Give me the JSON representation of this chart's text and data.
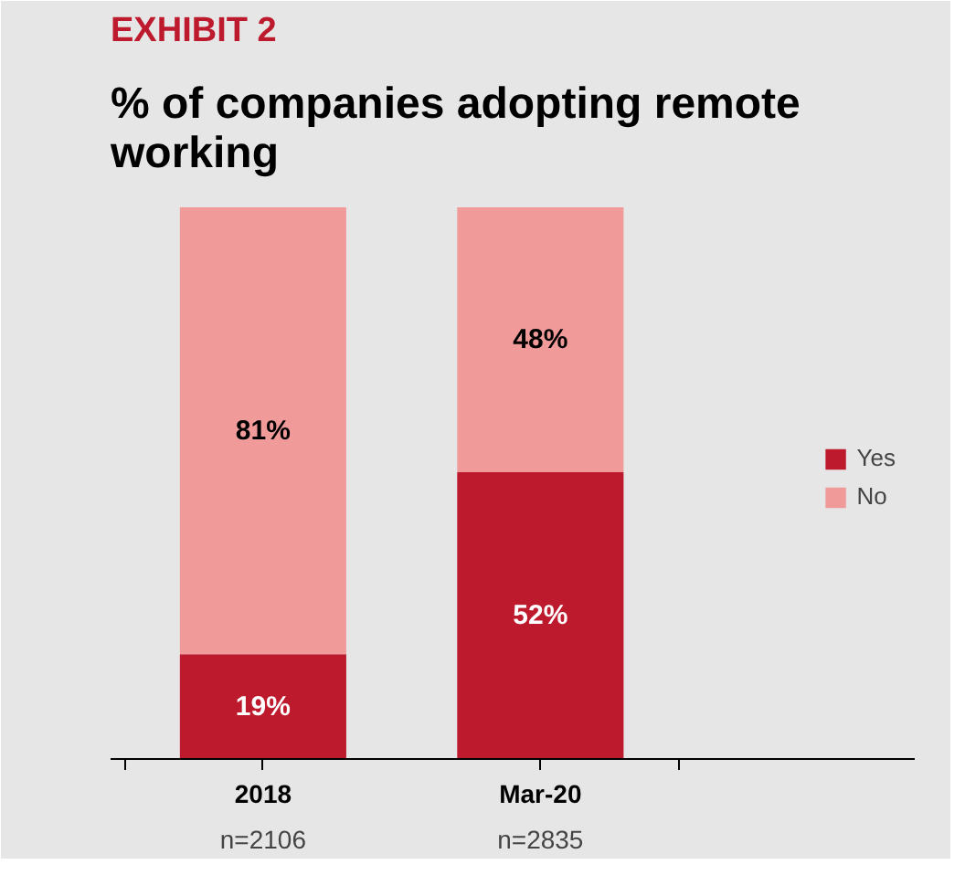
{
  "chart_data": {
    "type": "bar",
    "stacked": true,
    "title": "EXHIBIT 2",
    "subtitle": "% of companies adopting remote working",
    "categories": [
      "2018",
      "Mar-20"
    ],
    "series": [
      {
        "name": "Yes",
        "color": "#be1a2e",
        "values": [
          19,
          52
        ],
        "value_labels": [
          "19%",
          "52%"
        ]
      },
      {
        "name": "No",
        "color": "#f09a9a",
        "values": [
          81,
          48
        ],
        "value_labels": [
          "81%",
          "48%"
        ]
      }
    ],
    "annotations": [
      "n=2106",
      "n=2835"
    ],
    "legend": "right"
  }
}
